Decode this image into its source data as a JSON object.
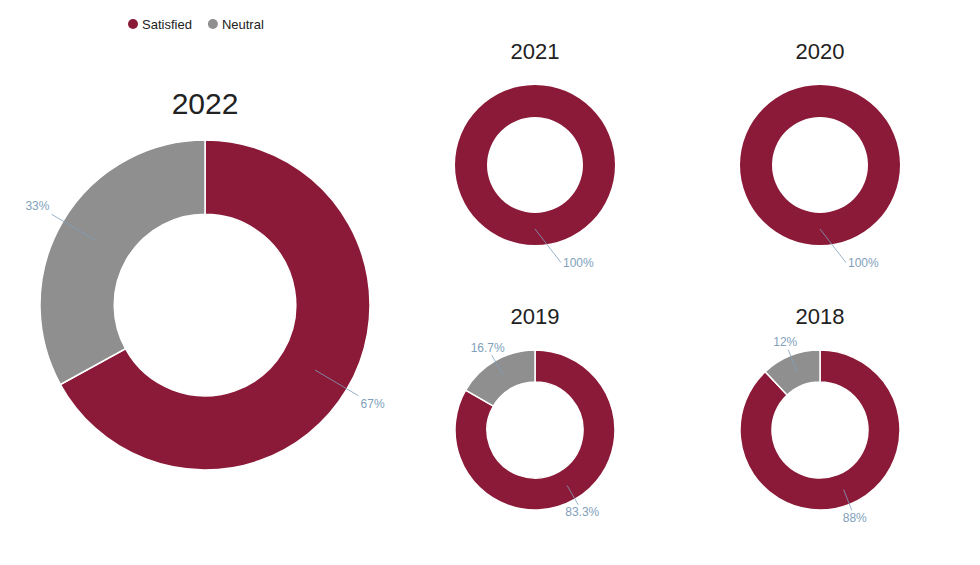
{
  "chart_data": [
    {
      "type": "pie",
      "title": "2022",
      "categories": [
        "Satisfied",
        "Neutral"
      ],
      "values": [
        67,
        33
      ],
      "value_labels": [
        "67%",
        "33%"
      ],
      "colors": [
        "#8B1A38",
        "#8f8f8f"
      ],
      "data_labels": true,
      "legend": "top-left"
    },
    {
      "type": "pie",
      "title": "2021",
      "categories": [
        "Satisfied"
      ],
      "values": [
        100
      ],
      "value_labels": [
        "100%"
      ],
      "colors": [
        "#8B1A38"
      ],
      "data_labels": true
    },
    {
      "type": "pie",
      "title": "2020",
      "categories": [
        "Satisfied"
      ],
      "values": [
        100
      ],
      "value_labels": [
        "100%"
      ],
      "colors": [
        "#8B1A38"
      ],
      "data_labels": true
    },
    {
      "type": "pie",
      "title": "2019",
      "categories": [
        "Satisfied",
        "Neutral"
      ],
      "values": [
        83.3,
        16.7
      ],
      "value_labels": [
        "83.3%",
        "16.7%"
      ],
      "colors": [
        "#8B1A38",
        "#8f8f8f"
      ],
      "data_labels": true
    },
    {
      "type": "pie",
      "title": "2018",
      "categories": [
        "Satisfied",
        "Neutral"
      ],
      "values": [
        88,
        12
      ],
      "value_labels": [
        "88%",
        "12%"
      ],
      "colors": [
        "#8B1A38",
        "#8f8f8f"
      ],
      "data_labels": true
    }
  ]
}
